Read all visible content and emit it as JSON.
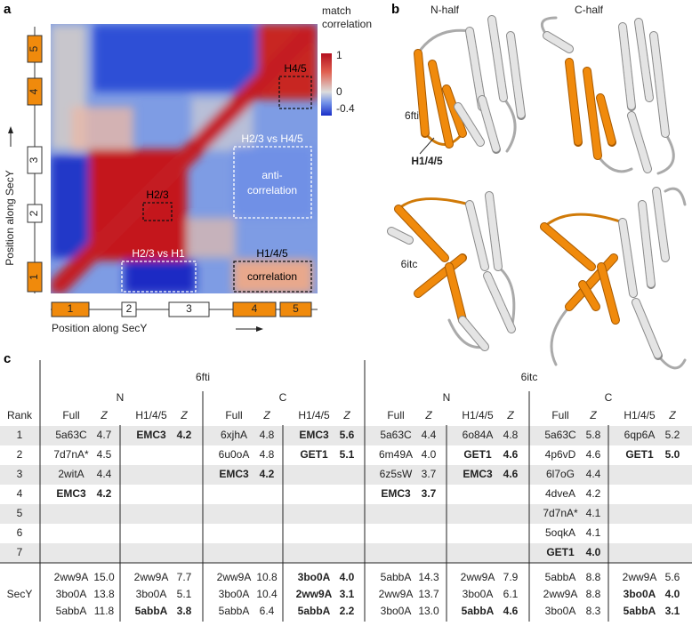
{
  "panel_a": {
    "label": "a",
    "colorbar_title": [
      "match",
      "correlation"
    ],
    "colorbar_ticks": [
      "1",
      "0",
      "-0.4"
    ],
    "axis_label_x": "Position along SecY",
    "axis_label_y": "Position along SecY",
    "left_boxes": [
      "5",
      "4",
      "3",
      "2",
      "1"
    ],
    "bottom_boxes": [
      "1",
      "2",
      "3",
      "4",
      "5"
    ],
    "annotations": {
      "h45": "H4/5",
      "h23_h45": "H2/3 vs H4/5",
      "anti": [
        "anti-",
        "correlation"
      ],
      "h23": "H2/3",
      "h23_h1": "H2/3 vs H1",
      "h145": "H1/4/5",
      "corr": "correlation"
    }
  },
  "panel_b": {
    "label": "b",
    "columns": [
      "N-half",
      "C-half"
    ],
    "rows": [
      "6fti",
      "6itc"
    ],
    "helix_label": "H1/4/5"
  },
  "panel_c": {
    "label": "c",
    "groups": [
      {
        "name": "6fti",
        "halves": [
          "N",
          "C"
        ]
      },
      {
        "name": "6itc",
        "halves": [
          "N",
          "C"
        ]
      }
    ],
    "rank_header": "Rank",
    "column_headers": [
      "Full",
      "Z",
      "H1/4/5",
      "Z"
    ],
    "ranks": [
      "1",
      "2",
      "3",
      "4",
      "5",
      "6",
      "7"
    ],
    "rows": [
      [
        {
          "id": "5a63C",
          "z": "4.7"
        },
        {
          "id": "EMC3",
          "z": "4.2",
          "bold": true
        },
        {
          "id": "6xjhA",
          "z": "4.8"
        },
        {
          "id": "EMC3",
          "z": "5.6",
          "bold": true
        },
        {
          "id": "5a63C",
          "z": "4.4"
        },
        {
          "id": "6o84A",
          "z": "4.8"
        },
        {
          "id": "5a63C",
          "z": "5.8"
        },
        {
          "id": "6qp6A",
          "z": "5.2"
        }
      ],
      [
        {
          "id": "7d7nA*",
          "z": "4.5"
        },
        null,
        {
          "id": "6u0oA",
          "z": "4.8"
        },
        {
          "id": "GET1",
          "z": "5.1",
          "bold": true
        },
        {
          "id": "6m49A",
          "z": "4.0"
        },
        {
          "id": "GET1",
          "z": "4.6",
          "bold": true
        },
        {
          "id": "4p6vD",
          "z": "4.6"
        },
        {
          "id": "GET1",
          "z": "5.0",
          "bold": true
        }
      ],
      [
        {
          "id": "2witA",
          "z": "4.4"
        },
        null,
        {
          "id": "EMC3",
          "z": "4.2",
          "bold": true
        },
        null,
        {
          "id": "6z5sW",
          "z": "3.7"
        },
        {
          "id": "EMC3",
          "z": "4.6",
          "bold": true
        },
        {
          "id": "6l7oG",
          "z": "4.4"
        },
        null
      ],
      [
        {
          "id": "EMC3",
          "z": "4.2",
          "bold": true
        },
        null,
        null,
        null,
        {
          "id": "EMC3",
          "z": "3.7",
          "bold": true
        },
        null,
        {
          "id": "4dveA",
          "z": "4.2"
        },
        null
      ],
      [
        null,
        null,
        null,
        null,
        null,
        null,
        {
          "id": "7d7nA*",
          "z": "4.1"
        },
        null
      ],
      [
        null,
        null,
        null,
        null,
        null,
        null,
        {
          "id": "5oqkA",
          "z": "4.1"
        },
        null
      ],
      [
        null,
        null,
        null,
        null,
        null,
        null,
        {
          "id": "GET1",
          "z": "4.0",
          "bold": true
        },
        null
      ]
    ],
    "secy_label": "SecY",
    "secy_rows": [
      [
        {
          "id": "2ww9A",
          "z": "15.0"
        },
        {
          "id": "2ww9A",
          "z": "7.7"
        },
        {
          "id": "2ww9A",
          "z": "10.8"
        },
        {
          "id": "3bo0A",
          "z": "4.0",
          "bold": true
        },
        {
          "id": "5abbA",
          "z": "14.3"
        },
        {
          "id": "2ww9A",
          "z": "7.9"
        },
        {
          "id": "5abbA",
          "z": "8.8"
        },
        {
          "id": "2ww9A",
          "z": "5.6"
        }
      ],
      [
        {
          "id": "3bo0A",
          "z": "13.8"
        },
        {
          "id": "3bo0A",
          "z": "5.1"
        },
        {
          "id": "3bo0A",
          "z": "10.4"
        },
        {
          "id": "2ww9A",
          "z": "3.1",
          "bold": true
        },
        {
          "id": "2ww9A",
          "z": "13.7"
        },
        {
          "id": "3bo0A",
          "z": "6.1"
        },
        {
          "id": "2ww9A",
          "z": "8.8"
        },
        {
          "id": "3bo0A",
          "z": "4.0",
          "bold": true
        }
      ],
      [
        {
          "id": "5abbA",
          "z": "11.8"
        },
        {
          "id": "5abbA",
          "z": "3.8",
          "bold": true
        },
        {
          "id": "5abbA",
          "z": "6.4"
        },
        {
          "id": "5abbA",
          "z": "2.2",
          "bold": true
        },
        {
          "id": "3bo0A",
          "z": "13.0"
        },
        {
          "id": "5abbA",
          "z": "4.6",
          "bold": true
        },
        {
          "id": "3bo0A",
          "z": "8.3"
        },
        {
          "id": "5abbA",
          "z": "3.1",
          "bold": true
        }
      ]
    ]
  }
}
